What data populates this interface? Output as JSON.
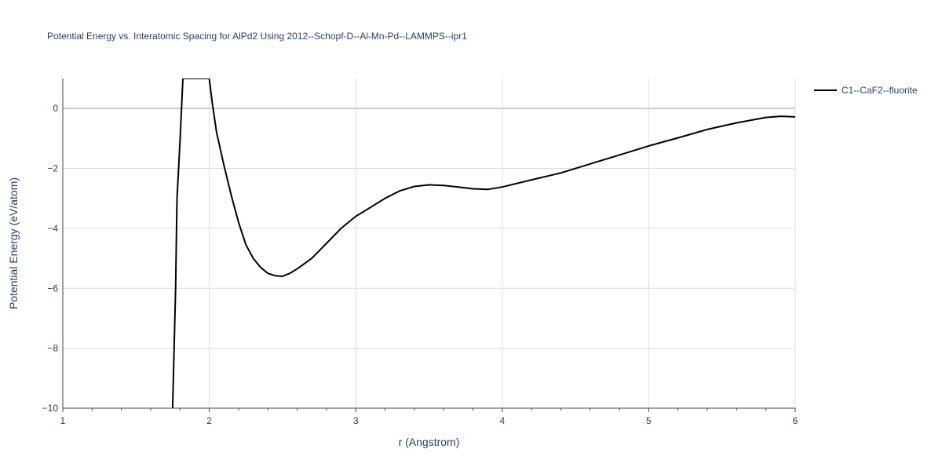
{
  "chart_data": {
    "type": "line",
    "title": "Potential Energy vs. Interatomic Spacing for AlPd2 Using 2012--Schopf-D--Al-Mn-Pd--LAMMPS--ipr1",
    "xlabel": "r (Angstrom)",
    "ylabel": "Potential Energy (eV/atom)",
    "xlim": [
      1,
      6
    ],
    "ylim": [
      -10,
      1
    ],
    "xticks": [
      1,
      2,
      3,
      4,
      5,
      6
    ],
    "yticks": [
      0,
      -2,
      -4,
      -6,
      -8,
      -10
    ],
    "grid": true,
    "legend_position": "top-right",
    "series": [
      {
        "name": "C1--CaF2--fluorite",
        "color": "#000000",
        "x": [
          1.75,
          1.77,
          1.78,
          1.8,
          1.82,
          2.0,
          2.02,
          2.05,
          2.1,
          2.15,
          2.2,
          2.25,
          2.3,
          2.35,
          2.4,
          2.45,
          2.5,
          2.55,
          2.6,
          2.7,
          2.8,
          2.9,
          3.0,
          3.1,
          3.2,
          3.3,
          3.4,
          3.5,
          3.6,
          3.7,
          3.8,
          3.9,
          4.0,
          4.2,
          4.4,
          4.6,
          4.8,
          5.0,
          5.2,
          5.4,
          5.6,
          5.8,
          5.9,
          6.0
        ],
        "y": [
          -10.0,
          -6.0,
          -3.0,
          -1.1,
          1.0,
          1.0,
          0.2,
          -0.8,
          -1.9,
          -2.9,
          -3.8,
          -4.55,
          -5.0,
          -5.3,
          -5.5,
          -5.58,
          -5.6,
          -5.5,
          -5.35,
          -5.0,
          -4.5,
          -4.0,
          -3.6,
          -3.3,
          -3.0,
          -2.75,
          -2.6,
          -2.55,
          -2.57,
          -2.62,
          -2.68,
          -2.7,
          -2.62,
          -2.38,
          -2.15,
          -1.85,
          -1.55,
          -1.25,
          -0.98,
          -0.7,
          -0.48,
          -0.3,
          -0.26,
          -0.28
        ]
      }
    ]
  }
}
